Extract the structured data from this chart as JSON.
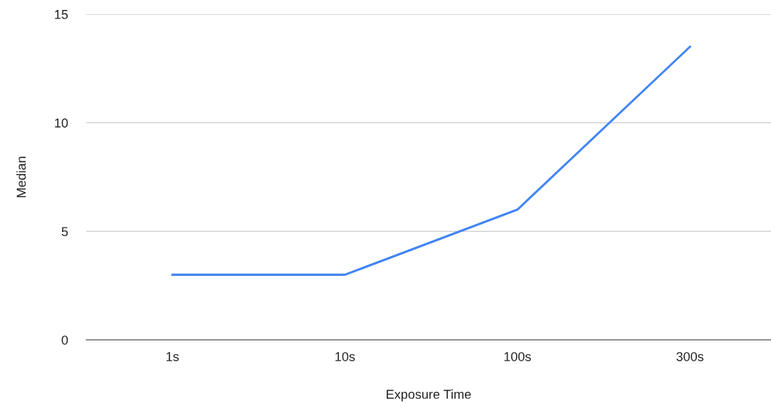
{
  "chart_data": {
    "type": "line",
    "xlabel": "Exposure Time",
    "ylabel": "Median",
    "categories": [
      "1s",
      "10s",
      "100s",
      "300s"
    ],
    "series": [
      {
        "color": "#4285f4",
        "values": [
          3,
          3,
          6,
          13.5
        ]
      }
    ],
    "ylim": [
      0,
      15
    ],
    "yticks": [
      0,
      5,
      10,
      15
    ],
    "grid": "y",
    "marker": "none",
    "line_style": "solid"
  }
}
